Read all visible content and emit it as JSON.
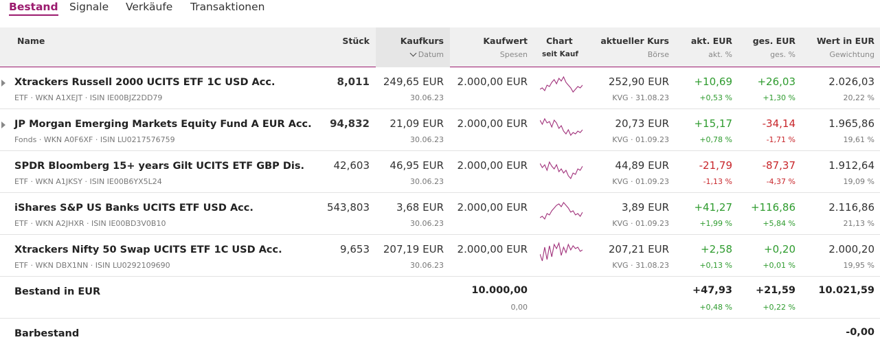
{
  "tabs": [
    {
      "label": "Bestand",
      "active": true
    },
    {
      "label": "Signale",
      "active": false
    },
    {
      "label": "Verkäufe",
      "active": false
    },
    {
      "label": "Transaktionen",
      "active": false
    }
  ],
  "header": {
    "name": "Name",
    "stueck": "Stück",
    "kaufkurs": "Kaufkurs",
    "kaufkurs_sub": "Datum",
    "kaufwert": "Kaufwert",
    "kaufwert_sub": "Spesen",
    "chart": "Chart",
    "chart_sub": "seit Kauf",
    "kurs": "aktueller Kurs",
    "kurs_sub": "Börse",
    "akt_eur": "akt. EUR",
    "akt_eur_sub": "akt. %",
    "ges_eur": "ges. EUR",
    "ges_eur_sub": "ges. %",
    "wert": "Wert in EUR",
    "wert_sub": "Gewichtung"
  },
  "colors": {
    "accent": "#9b1a6e",
    "positive": "#2e9b2e",
    "negative": "#c8262b",
    "sparkline": "#a0307a"
  },
  "rows": [
    {
      "name": "Xtrackers Russell 2000 UCITS ETF 1C USD Acc.",
      "meta": "ETF · WKN A1XEJT · ISIN IE00BJZ2DD79",
      "stueck": "8,011",
      "stueck_bold": true,
      "kaufkurs": "249,65 EUR",
      "datum": "30.06.23",
      "kaufwert": "2.000,00 EUR",
      "kurs": "252,90 EUR",
      "boerse": "KVG · 31.08.23",
      "akt_eur": "+10,69",
      "akt_pct": "+0,53 %",
      "ges_eur": "+26,03",
      "ges_pct": "+1,30 %",
      "wert": "2.026,03",
      "gewichtung": "20,22 %",
      "expandable": true,
      "spark": [
        24,
        22,
        26,
        18,
        20,
        14,
        10,
        16,
        8,
        12,
        6,
        14,
        18,
        22,
        28,
        24,
        20,
        22,
        18
      ]
    },
    {
      "name": "JP Morgan Emerging Markets Equity Fund A EUR Acc.",
      "meta": "Fonds · WKN A0F6XF · ISIN LU0217576759",
      "stueck": "94,832",
      "stueck_bold": true,
      "kaufkurs": "21,09 EUR",
      "datum": "30.06.23",
      "kaufwert": "2.000,00 EUR",
      "kurs": "20,73 EUR",
      "boerse": "KVG · 01.09.23",
      "akt_eur": "+15,17",
      "akt_pct": "+0,78 %",
      "ges_eur": "-34,14",
      "ges_pct": "-1,71 %",
      "wert": "1.965,86",
      "gewichtung": "19,61 %",
      "expandable": true,
      "spark": [
        8,
        14,
        6,
        12,
        10,
        18,
        8,
        12,
        20,
        16,
        24,
        28,
        22,
        30,
        26,
        28,
        24,
        26,
        22
      ]
    },
    {
      "name": "SPDR Bloomberg 15+ years Gilt UCITS ETF GBP Dis.",
      "meta": "ETF · WKN A1JKSY · ISIN IE00B6YX5L24",
      "stueck": "42,603",
      "stueck_bold": false,
      "kaufkurs": "46,95 EUR",
      "datum": "30.06.23",
      "kaufwert": "2.000,00 EUR",
      "kurs": "44,89 EUR",
      "boerse": "KVG · 01.09.23",
      "akt_eur": "-21,79",
      "akt_pct": "-1,13 %",
      "ges_eur": "-87,37",
      "ges_pct": "-4,37 %",
      "wert": "1.912,64",
      "gewichtung": "19,09 %",
      "expandable": false,
      "spark": [
        10,
        16,
        12,
        20,
        8,
        14,
        18,
        12,
        22,
        18,
        24,
        20,
        28,
        32,
        24,
        26,
        18,
        20,
        14
      ]
    },
    {
      "name": "iShares S&P US Banks UCITS ETF USD Acc.",
      "meta": "ETF · WKN A2JHXR · ISIN IE00BD3V0B10",
      "stueck": "543,803",
      "stueck_bold": false,
      "kaufkurs": "3,68 EUR",
      "datum": "30.06.23",
      "kaufwert": "2.000,00 EUR",
      "kurs": "3,89 EUR",
      "boerse": "KVG · 01.09.23",
      "akt_eur": "+41,27",
      "akt_pct": "+1,99 %",
      "ges_eur": "+116,86",
      "ges_pct": "+5,84 %",
      "wert": "2.116,86",
      "gewichtung": "21,13 %",
      "expandable": false,
      "spark": [
        28,
        26,
        30,
        22,
        24,
        18,
        14,
        10,
        8,
        12,
        6,
        10,
        14,
        20,
        18,
        24,
        22,
        26,
        20
      ]
    },
    {
      "name": "Xtrackers Nifty 50 Swap UCITS ETF 1C USD Acc.",
      "meta": "ETF · WKN DBX1NN · ISIN LU0292109690",
      "stueck": "9,653",
      "stueck_bold": false,
      "kaufkurs": "207,19 EUR",
      "datum": "30.06.23",
      "kaufwert": "2.000,00 EUR",
      "kurs": "207,21 EUR",
      "boerse": "KVG · 31.08.23",
      "akt_eur": "+2,58",
      "akt_pct": "+0,13 %",
      "ges_eur": "+0,20",
      "ges_pct": "+0,01 %",
      "wert": "2.000,20",
      "gewichtung": "19,95 %",
      "expandable": false,
      "spark": [
        20,
        30,
        10,
        28,
        8,
        24,
        6,
        12,
        4,
        22,
        10,
        18,
        6,
        14,
        8,
        12,
        10,
        16,
        14
      ]
    }
  ],
  "summary": {
    "label": "Bestand in EUR",
    "kaufwert": "10.000,00",
    "spesen": "0,00",
    "akt_eur": "+47,93",
    "akt_pct": "+0,48 %",
    "ges_eur": "+21,59",
    "ges_pct": "+0,22 %",
    "wert": "10.021,59"
  },
  "cash": {
    "label": "Barbestand",
    "wert": "-0,00"
  }
}
